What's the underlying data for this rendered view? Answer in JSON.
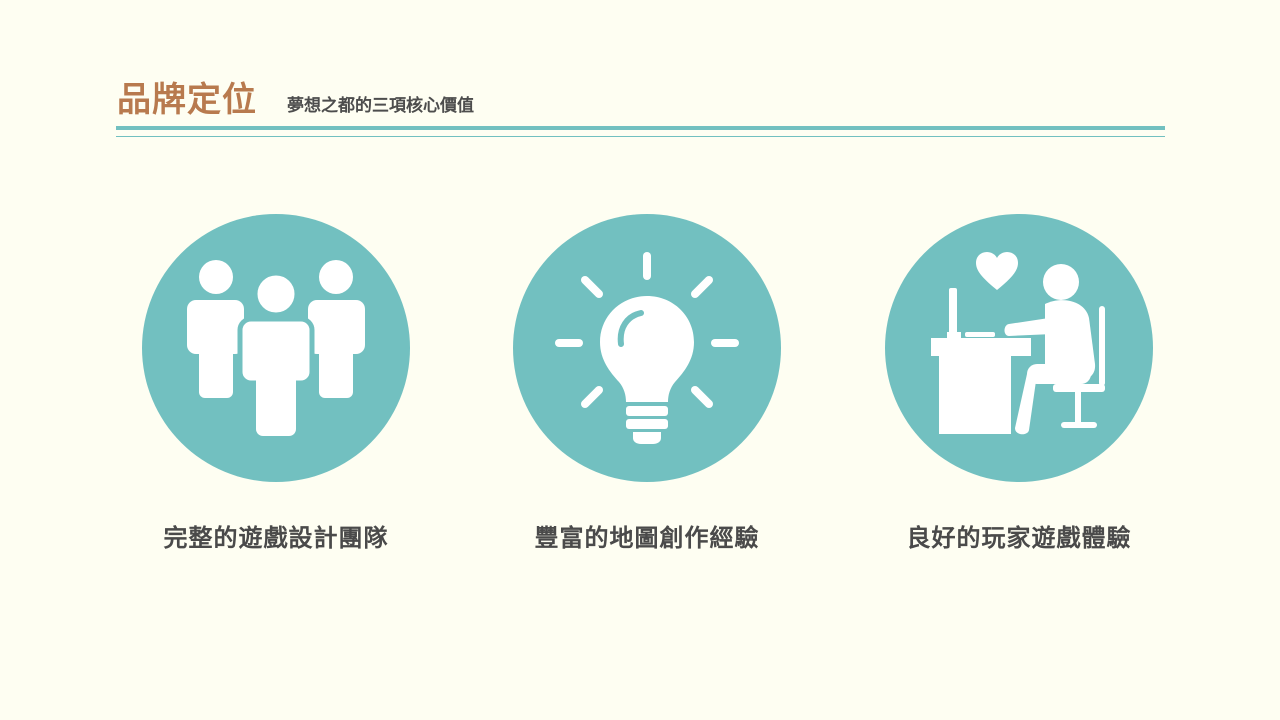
{
  "header": {
    "title": "品牌定位",
    "subtitle": "夢想之都的三項核心價值"
  },
  "values": [
    {
      "label": "完整的遊戲設計團隊",
      "icon": "team-icon"
    },
    {
      "label": "豐富的地圖創作經驗",
      "icon": "lightbulb-icon"
    },
    {
      "label": "良好的玩家遊戲體驗",
      "icon": "player-at-computer-icon"
    }
  ],
  "colors": {
    "title": "#b87a4e",
    "accent": "#72c0c0",
    "background": "#fefef2",
    "text": "#4a4a4a"
  }
}
